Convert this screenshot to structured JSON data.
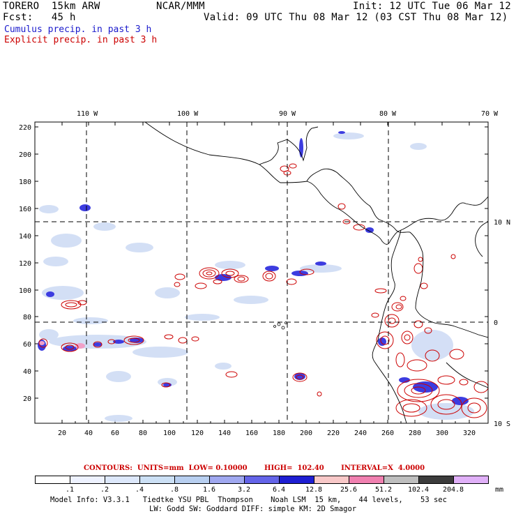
{
  "header": {
    "model": "TORERO  15km ARW",
    "center": "NCAR/MMM",
    "init": "Init: 12 UTC Tue 06 Mar 12",
    "fcst": "Fcst:   45 h",
    "valid": "Valid: 09 UTC Thu 08 Mar 12 (03 CST Thu 08 Mar 12)",
    "cumulus": "Cumulus precip. in past 3 h",
    "explicit": "Explicit precip. in past 3 h"
  },
  "colors": {
    "cumulus": "#1a1acc",
    "explicit": "#cc0000",
    "coast": "#000000"
  },
  "axes": {
    "lon_labels": [
      "110 W",
      "100 W",
      "90 W",
      "80 W",
      "70 W"
    ],
    "lat_labels": [
      "10 N",
      "0",
      "10 S"
    ],
    "x_ticks": [
      "20",
      "40",
      "60",
      "80",
      "100",
      "120",
      "140",
      "160",
      "180",
      "200",
      "220",
      "240",
      "260",
      "280",
      "300",
      "320"
    ],
    "y_ticks": [
      "20",
      "40",
      "60",
      "80",
      "100",
      "120",
      "140",
      "160",
      "180",
      "200",
      "220"
    ]
  },
  "legend": {
    "contours": "CONTOURS:  UNITS=mm  LOW= 0.10000       HIGH=  102.40       INTERVAL=X  4.0000",
    "labels": [
      ".1",
      ".2",
      ".4",
      ".8",
      "1.6",
      "3.2",
      "6.4",
      "12.8",
      "25.6",
      "51.2",
      "102.4",
      "204.8"
    ],
    "unit": "mm",
    "colors": [
      "#ffffff",
      "#eef2ff",
      "#dde8fb",
      "#cce0f5",
      "#b8cff0",
      "#a0a8f0",
      "#6464e8",
      "#1e1ed2",
      "#f8c8c8",
      "#f080b0",
      "#bebebe",
      "#3c3c3c",
      "#e0b0f8"
    ]
  },
  "footer": {
    "line1": "Model Info: V3.3.1   Tiedtke YSU PBL  Thompson    Noah LSM  15 km,    44 levels,    53 sec",
    "line2": "LW: Godd SW: Goddard DIFF: simple KM: 2D Smagor"
  }
}
